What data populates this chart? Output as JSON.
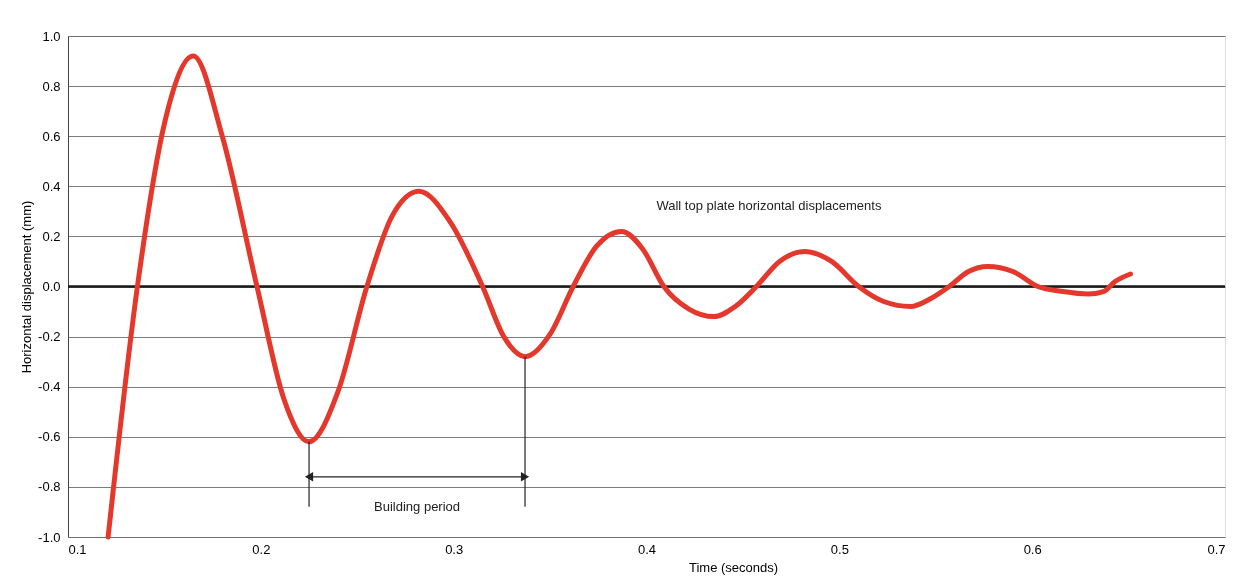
{
  "chart_data": {
    "type": "line",
    "xlabel": "Time (seconds)",
    "ylabel": "Horizontal displacement (mm)",
    "x": [
      0.1208,
      0.136,
      0.15,
      0.165,
      0.18,
      0.198,
      0.212,
      0.225,
      0.24,
      0.255,
      0.268,
      0.282,
      0.298,
      0.315,
      0.326,
      0.337,
      0.35,
      0.362,
      0.374,
      0.387,
      0.398,
      0.409,
      0.422,
      0.435,
      0.446,
      0.457,
      0.469,
      0.482,
      0.496,
      0.51,
      0.523,
      0.537,
      0.547,
      0.557,
      0.567,
      0.577,
      0.59,
      0.603,
      0.616,
      0.629,
      0.637,
      0.643,
      0.651
    ],
    "series": [
      {
        "name": "Wall top plate horizontal displacements",
        "color": "#e3382b",
        "values": [
          -1.0,
          0.0,
          0.65,
          0.92,
          0.6,
          0.0,
          -0.45,
          -0.62,
          -0.42,
          0.0,
          0.28,
          0.38,
          0.26,
          0.0,
          -0.2,
          -0.28,
          -0.19,
          0.0,
          0.16,
          0.22,
          0.15,
          0.0,
          -0.09,
          -0.12,
          -0.08,
          0.0,
          0.1,
          0.14,
          0.1,
          0.0,
          -0.06,
          -0.08,
          -0.05,
          0.0,
          0.06,
          0.08,
          0.06,
          0.0,
          -0.02,
          -0.03,
          -0.02,
          0.02,
          0.05
        ]
      }
    ],
    "xlim": [
      0.1,
      0.7
    ],
    "xticks": [
      {
        "value": 0.1,
        "label": "0.1"
      },
      {
        "value": 0.2,
        "label": "0.2"
      },
      {
        "value": 0.3,
        "label": "0.3"
      },
      {
        "value": 0.4,
        "label": "0.4"
      },
      {
        "value": 0.5,
        "label": "0.5"
      },
      {
        "value": 0.6,
        "label": "0.6"
      },
      {
        "value": 0.7,
        "label": "0.7"
      }
    ],
    "ylim": [
      -1.0,
      1.0
    ],
    "yticks": [
      {
        "value": -1.0,
        "label": "-1.0"
      },
      {
        "value": -0.8,
        "label": "-0.8"
      },
      {
        "value": -0.6,
        "label": "-0.6"
      },
      {
        "value": -0.4,
        "label": "-0.4"
      },
      {
        "value": -0.2,
        "label": "-0.2"
      },
      {
        "value": 0,
        "label": "0.0"
      },
      {
        "value": 0.2,
        "label": "0.2"
      },
      {
        "value": 0.4,
        "label": "0.4"
      },
      {
        "value": 0.6,
        "label": "0.6"
      },
      {
        "value": 0.8,
        "label": "0.8"
      },
      {
        "value": 1.0,
        "label": "1.0"
      }
    ],
    "grid": "y",
    "marker": "none",
    "line_style": "solid",
    "ref_lines": [
      {
        "axis": "y",
        "value": 0,
        "color": "#1a1a1a"
      }
    ],
    "annotations": [
      "Building period"
    ]
  }
}
